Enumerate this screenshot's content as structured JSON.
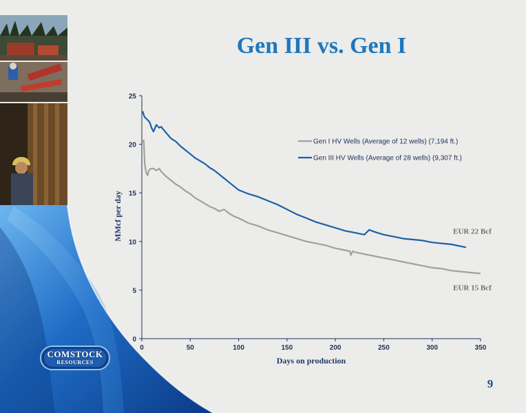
{
  "slide": {
    "title": "Gen III vs. Gen I",
    "page_number": "9",
    "logo": {
      "line1": "COMSTOCK",
      "line2": "RESOURCES"
    },
    "colors": {
      "title": "#1f77bd",
      "accent_blue": "#1a5fa8",
      "background": "#ececea"
    }
  },
  "chart_data": {
    "type": "line",
    "title": "",
    "xlabel": "Days on production",
    "ylabel": "MMcf per day",
    "xlim": [
      0,
      350
    ],
    "ylim": [
      0,
      25
    ],
    "x_ticks": [
      "0",
      "50",
      "100",
      "150",
      "200",
      "250",
      "300",
      "350"
    ],
    "y_ticks": [
      "0",
      "5",
      "10",
      "15",
      "20",
      "25"
    ],
    "grid": false,
    "legend_position": "top-right",
    "series": [
      {
        "name": "Gen I HV Wells (Average of 12 wells) (7,194 ft.)",
        "color": "#a0a0a0",
        "x": [
          1,
          2,
          3,
          4,
          5,
          6,
          7,
          8,
          10,
          12,
          15,
          18,
          20,
          25,
          30,
          35,
          40,
          45,
          50,
          55,
          60,
          65,
          70,
          75,
          80,
          85,
          90,
          95,
          100,
          110,
          120,
          130,
          140,
          150,
          160,
          170,
          180,
          190,
          200,
          210,
          215,
          216,
          218,
          220,
          230,
          240,
          250,
          260,
          270,
          280,
          290,
          300,
          310,
          320,
          330,
          340,
          350
        ],
        "y": [
          20.2,
          20.4,
          18.0,
          17.3,
          17.0,
          16.8,
          17.2,
          17.4,
          17.5,
          17.5,
          17.3,
          17.5,
          17.2,
          16.7,
          16.3,
          15.9,
          15.6,
          15.2,
          14.9,
          14.5,
          14.2,
          13.9,
          13.6,
          13.4,
          13.1,
          13.3,
          12.9,
          12.6,
          12.4,
          11.9,
          11.6,
          11.2,
          10.9,
          10.6,
          10.3,
          10.0,
          9.8,
          9.6,
          9.3,
          9.1,
          9.0,
          8.6,
          9.0,
          8.9,
          8.7,
          8.5,
          8.3,
          8.1,
          7.9,
          7.7,
          7.5,
          7.3,
          7.2,
          7.0,
          6.9,
          6.8,
          6.7
        ]
      },
      {
        "name": "Gen III HV Wells (Average of 28 wells) (9,307 ft.)",
        "color": "#1a5fa8",
        "x": [
          1,
          2,
          3,
          5,
          8,
          10,
          12,
          15,
          18,
          20,
          25,
          30,
          35,
          40,
          45,
          50,
          55,
          60,
          65,
          70,
          75,
          80,
          85,
          90,
          95,
          100,
          110,
          120,
          130,
          140,
          150,
          160,
          170,
          180,
          190,
          200,
          210,
          220,
          230,
          235,
          240,
          250,
          260,
          270,
          280,
          290,
          300,
          310,
          320,
          330,
          335
        ],
        "y": [
          23.4,
          23.0,
          22.8,
          22.6,
          22.3,
          21.7,
          21.3,
          22.0,
          21.7,
          21.8,
          21.2,
          20.6,
          20.3,
          19.8,
          19.4,
          19.0,
          18.6,
          18.3,
          18.0,
          17.6,
          17.3,
          16.9,
          16.5,
          16.1,
          15.7,
          15.3,
          14.9,
          14.6,
          14.2,
          13.8,
          13.3,
          12.8,
          12.4,
          12.0,
          11.7,
          11.4,
          11.1,
          10.9,
          10.7,
          11.2,
          11.0,
          10.7,
          10.5,
          10.3,
          10.2,
          10.1,
          9.9,
          9.8,
          9.7,
          9.5,
          9.4
        ]
      }
    ],
    "annotations": [
      {
        "text": "EUR 22 Bcf",
        "x": 340,
        "y": 10.8
      },
      {
        "text": "EUR 15 Bcf",
        "x": 340,
        "y": 5.0
      }
    ]
  }
}
